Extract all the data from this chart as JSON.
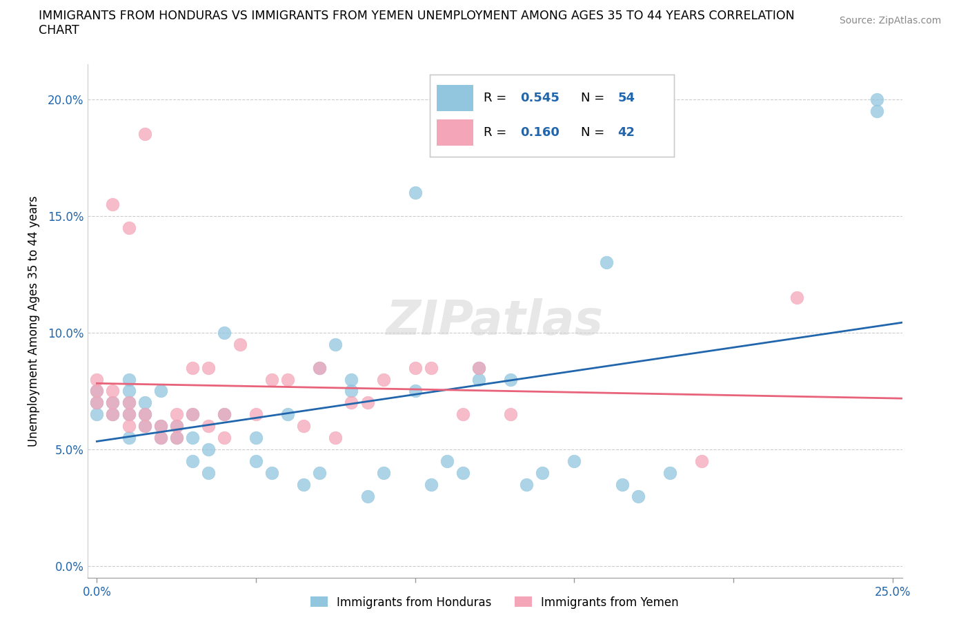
{
  "title_line1": "IMMIGRANTS FROM HONDURAS VS IMMIGRANTS FROM YEMEN UNEMPLOYMENT AMONG AGES 35 TO 44 YEARS CORRELATION",
  "title_line2": "CHART",
  "source": "Source: ZipAtlas.com",
  "ylabel": "Unemployment Among Ages 35 to 44 years",
  "xlim": [
    -0.003,
    0.253
  ],
  "ylim": [
    -0.005,
    0.215
  ],
  "xticks": [
    0.0,
    0.05,
    0.1,
    0.15,
    0.2,
    0.25
  ],
  "yticks": [
    0.0,
    0.05,
    0.1,
    0.15,
    0.2
  ],
  "xticklabels": [
    "0.0%",
    "",
    "",
    "",
    "",
    "25.0%"
  ],
  "yticklabels": [
    "0.0%",
    "5.0%",
    "10.0%",
    "15.0%",
    "20.0%"
  ],
  "honduras_color": "#92c5de",
  "yemen_color": "#f4a6b8",
  "honduras_line_color": "#2166ac",
  "yemen_line_color": "#e8627a",
  "honduras_R": "0.545",
  "honduras_N": "54",
  "yemen_R": "0.160",
  "yemen_N": "42",
  "stat_color": "#2166ac",
  "watermark": "ZIPatlas",
  "tick_color": "#2166ac",
  "honduras_label": "Immigrants from Honduras",
  "yemen_label": "Immigrants from Yemen",
  "honduras_x": [
    0.0,
    0.0,
    0.0,
    0.005,
    0.005,
    0.01,
    0.01,
    0.01,
    0.01,
    0.01,
    0.015,
    0.015,
    0.015,
    0.02,
    0.02,
    0.02,
    0.025,
    0.025,
    0.03,
    0.03,
    0.03,
    0.035,
    0.035,
    0.04,
    0.04,
    0.05,
    0.05,
    0.055,
    0.06,
    0.065,
    0.07,
    0.07,
    0.075,
    0.08,
    0.08,
    0.085,
    0.09,
    0.1,
    0.1,
    0.105,
    0.11,
    0.115,
    0.12,
    0.12,
    0.13,
    0.135,
    0.14,
    0.15,
    0.16,
    0.165,
    0.17,
    0.18,
    0.245,
    0.245
  ],
  "honduras_y": [
    0.065,
    0.07,
    0.075,
    0.065,
    0.07,
    0.055,
    0.065,
    0.07,
    0.075,
    0.08,
    0.06,
    0.065,
    0.07,
    0.055,
    0.06,
    0.075,
    0.055,
    0.06,
    0.045,
    0.055,
    0.065,
    0.04,
    0.05,
    0.065,
    0.1,
    0.045,
    0.055,
    0.04,
    0.065,
    0.035,
    0.04,
    0.085,
    0.095,
    0.075,
    0.08,
    0.03,
    0.04,
    0.075,
    0.16,
    0.035,
    0.045,
    0.04,
    0.08,
    0.085,
    0.08,
    0.035,
    0.04,
    0.045,
    0.13,
    0.035,
    0.03,
    0.04,
    0.195,
    0.2
  ],
  "yemen_x": [
    0.0,
    0.0,
    0.0,
    0.005,
    0.005,
    0.005,
    0.005,
    0.01,
    0.01,
    0.01,
    0.01,
    0.015,
    0.015,
    0.015,
    0.02,
    0.02,
    0.025,
    0.025,
    0.025,
    0.03,
    0.03,
    0.035,
    0.035,
    0.04,
    0.04,
    0.045,
    0.05,
    0.055,
    0.06,
    0.065,
    0.07,
    0.075,
    0.08,
    0.085,
    0.09,
    0.1,
    0.105,
    0.115,
    0.12,
    0.13,
    0.19,
    0.22
  ],
  "yemen_y": [
    0.07,
    0.075,
    0.08,
    0.065,
    0.07,
    0.075,
    0.155,
    0.06,
    0.065,
    0.07,
    0.145,
    0.06,
    0.065,
    0.185,
    0.055,
    0.06,
    0.055,
    0.06,
    0.065,
    0.065,
    0.085,
    0.06,
    0.085,
    0.055,
    0.065,
    0.095,
    0.065,
    0.08,
    0.08,
    0.06,
    0.085,
    0.055,
    0.07,
    0.07,
    0.08,
    0.085,
    0.085,
    0.065,
    0.085,
    0.065,
    0.045,
    0.115
  ]
}
